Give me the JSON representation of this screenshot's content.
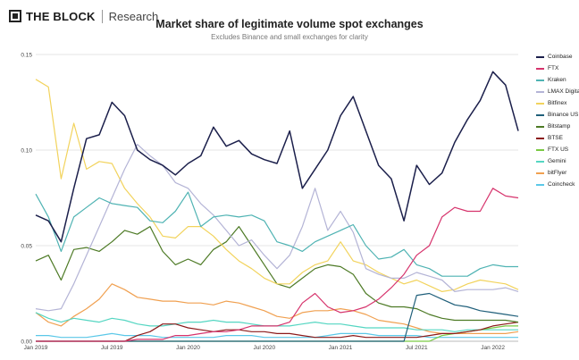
{
  "header": {
    "brand": "THE BLOCK",
    "section": "Research"
  },
  "chart_data": {
    "type": "line",
    "title": "Market share of legitimate volume spot exchanges",
    "subtitle": "Excludes Binance and small exchanges for clarity",
    "xlabel": "",
    "ylabel": "",
    "x": [
      "2019-01",
      "2019-02",
      "2019-03",
      "2019-04",
      "2019-05",
      "2019-06",
      "2019-07",
      "2019-08",
      "2019-09",
      "2019-10",
      "2019-11",
      "2019-12",
      "2020-01",
      "2020-02",
      "2020-03",
      "2020-04",
      "2020-05",
      "2020-06",
      "2020-07",
      "2020-08",
      "2020-09",
      "2020-10",
      "2020-11",
      "2020-12",
      "2021-01",
      "2021-02",
      "2021-03",
      "2021-04",
      "2021-05",
      "2021-06",
      "2021-07",
      "2021-08",
      "2021-09",
      "2021-10",
      "2021-11",
      "2021-12",
      "2022-01",
      "2022-02",
      "2022-03"
    ],
    "x_tick_labels": [
      "Jan 2019",
      "Jul 2019",
      "Jan 2020",
      "Jul 2020",
      "Jan 2021",
      "Jul 2021",
      "Jan 2022"
    ],
    "x_tick_positions": [
      "2019-01",
      "2019-07",
      "2020-01",
      "2020-07",
      "2021-01",
      "2021-07",
      "2022-01"
    ],
    "ylim": [
      0,
      0.15
    ],
    "y_ticks": [
      0,
      0.05,
      0.1,
      0.15
    ],
    "y_tick_labels": [
      "0.00",
      "0.05",
      "0.10",
      "0.15"
    ],
    "grid": "horizontal",
    "legend_position": "right",
    "series": [
      {
        "name": "Coinbase",
        "color": "#1b1f4b",
        "values": [
          0.066,
          0.063,
          0.052,
          0.08,
          0.106,
          0.108,
          0.125,
          0.118,
          0.1,
          0.095,
          0.092,
          0.087,
          0.093,
          0.097,
          0.112,
          0.102,
          0.105,
          0.098,
          0.095,
          0.093,
          0.11,
          0.08,
          0.09,
          0.1,
          0.118,
          0.128,
          0.11,
          0.092,
          0.085,
          0.063,
          0.092,
          0.082,
          0.088,
          0.104,
          0.116,
          0.126,
          0.141,
          0.134,
          0.11
        ]
      },
      {
        "name": "FTX",
        "color": "#d6336c",
        "values": [
          0,
          0,
          0,
          0,
          0,
          0,
          0,
          0,
          0.001,
          0.001,
          0.001,
          0.003,
          0.003,
          0.004,
          0.005,
          0.005,
          0.006,
          0.008,
          0.008,
          0.008,
          0.01,
          0.02,
          0.025,
          0.018,
          0.015,
          0.016,
          0.018,
          0.022,
          0.028,
          0.035,
          0.045,
          0.05,
          0.065,
          0.07,
          0.068,
          0.068,
          0.08,
          0.076,
          0.075
        ]
      },
      {
        "name": "Kraken",
        "color": "#4fb3b3",
        "values": [
          0.077,
          0.065,
          0.047,
          0.065,
          0.07,
          0.075,
          0.072,
          0.071,
          0.07,
          0.063,
          0.062,
          0.068,
          0.078,
          0.06,
          0.065,
          0.066,
          0.065,
          0.066,
          0.063,
          0.052,
          0.05,
          0.047,
          0.052,
          0.055,
          0.058,
          0.061,
          0.05,
          0.043,
          0.044,
          0.048,
          0.04,
          0.038,
          0.034,
          0.034,
          0.034,
          0.038,
          0.04,
          0.039,
          0.039
        ]
      },
      {
        "name": "LMAX Digital",
        "color": "#b4b4d6",
        "values": [
          0.017,
          0.016,
          0.017,
          0.03,
          0.045,
          0.06,
          0.075,
          0.09,
          0.103,
          0.097,
          0.092,
          0.083,
          0.08,
          0.072,
          0.066,
          0.058,
          0.05,
          0.053,
          0.045,
          0.038,
          0.045,
          0.06,
          0.08,
          0.058,
          0.068,
          0.057,
          0.038,
          0.035,
          0.033,
          0.033,
          0.036,
          0.034,
          0.032,
          0.026,
          0.027,
          0.027,
          0.027,
          0.028,
          0.026
        ]
      },
      {
        "name": "Bitfinex",
        "color": "#f2d35c",
        "values": [
          0.137,
          0.133,
          0.085,
          0.114,
          0.09,
          0.094,
          0.093,
          0.08,
          0.072,
          0.065,
          0.055,
          0.054,
          0.06,
          0.06,
          0.055,
          0.048,
          0.042,
          0.038,
          0.033,
          0.03,
          0.03,
          0.036,
          0.04,
          0.042,
          0.052,
          0.042,
          0.04,
          0.036,
          0.033,
          0.03,
          0.032,
          0.029,
          0.026,
          0.027,
          0.03,
          0.032,
          0.031,
          0.03,
          0.027
        ]
      },
      {
        "name": "Binance US",
        "color": "#1f5f7a",
        "values": [
          0,
          0,
          0,
          0,
          0,
          0,
          0,
          0,
          0,
          0,
          0,
          0,
          0,
          0,
          0,
          0,
          0,
          0,
          0,
          0,
          0,
          0,
          0,
          0,
          0,
          0,
          0,
          0,
          0,
          0,
          0.024,
          0.025,
          0.022,
          0.019,
          0.018,
          0.016,
          0.015,
          0.014,
          0.013
        ]
      },
      {
        "name": "Bitstamp",
        "color": "#4d7a25",
        "values": [
          0.042,
          0.045,
          0.032,
          0.048,
          0.049,
          0.047,
          0.052,
          0.058,
          0.056,
          0.06,
          0.047,
          0.04,
          0.043,
          0.04,
          0.048,
          0.052,
          0.06,
          0.05,
          0.04,
          0.03,
          0.028,
          0.033,
          0.038,
          0.04,
          0.039,
          0.035,
          0.025,
          0.02,
          0.018,
          0.018,
          0.017,
          0.014,
          0.012,
          0.011,
          0.011,
          0.011,
          0.011,
          0.011,
          0.01
        ]
      },
      {
        "name": "BTSE",
        "color": "#8b1a1a",
        "values": [
          0,
          0,
          0,
          0,
          0,
          0,
          0,
          0,
          0.003,
          0.005,
          0.009,
          0.009,
          0.007,
          0.006,
          0.005,
          0.006,
          0.006,
          0.005,
          0.005,
          0.004,
          0.004,
          0.003,
          0.002,
          0.002,
          0.002,
          0.003,
          0.002,
          0.002,
          0.002,
          0.002,
          0.002,
          0.003,
          0.004,
          0.004,
          0.005,
          0.006,
          0.008,
          0.009,
          0.01
        ]
      },
      {
        "name": "FTX US",
        "color": "#7ac943",
        "values": [
          0,
          0,
          0,
          0,
          0,
          0,
          0,
          0,
          0,
          0,
          0,
          0,
          0,
          0,
          0,
          0,
          0,
          0,
          0,
          0,
          0,
          0,
          0,
          0,
          0,
          0,
          0,
          0,
          0,
          0,
          0,
          0,
          0.003,
          0.004,
          0.005,
          0.006,
          0.007,
          0.008,
          0.008
        ]
      },
      {
        "name": "Gemini",
        "color": "#55d6c2",
        "values": [
          0.015,
          0.012,
          0.01,
          0.012,
          0.011,
          0.01,
          0.012,
          0.011,
          0.009,
          0.008,
          0.008,
          0.009,
          0.01,
          0.01,
          0.011,
          0.01,
          0.01,
          0.009,
          0.008,
          0.008,
          0.008,
          0.009,
          0.01,
          0.009,
          0.009,
          0.008,
          0.007,
          0.007,
          0.007,
          0.007,
          0.006,
          0.006,
          0.006,
          0.005,
          0.006,
          0.006,
          0.006,
          0.006,
          0.006
        ]
      },
      {
        "name": "bitFlyer",
        "color": "#f0a050",
        "values": [
          0.015,
          0.01,
          0.008,
          0.013,
          0.017,
          0.022,
          0.03,
          0.027,
          0.023,
          0.022,
          0.021,
          0.021,
          0.02,
          0.02,
          0.019,
          0.021,
          0.02,
          0.018,
          0.016,
          0.013,
          0.012,
          0.015,
          0.016,
          0.016,
          0.017,
          0.016,
          0.014,
          0.011,
          0.01,
          0.009,
          0.007,
          0.005,
          0.004,
          0.004,
          0.004,
          0.004,
          0.004,
          0.004,
          0.005
        ]
      },
      {
        "name": "Coincheck",
        "color": "#5bc8e8",
        "values": [
          0.003,
          0.003,
          0.002,
          0.002,
          0.002,
          0.003,
          0.004,
          0.003,
          0.003,
          0.003,
          0.002,
          0.002,
          0.002,
          0.002,
          0.002,
          0.003,
          0.003,
          0.003,
          0.002,
          0.002,
          0.002,
          0.002,
          0.002,
          0.003,
          0.004,
          0.004,
          0.004,
          0.003,
          0.003,
          0.003,
          0.003,
          0.002,
          0.002,
          0.002,
          0.002,
          0.002,
          0.002,
          0.002,
          0.002
        ]
      }
    ]
  }
}
